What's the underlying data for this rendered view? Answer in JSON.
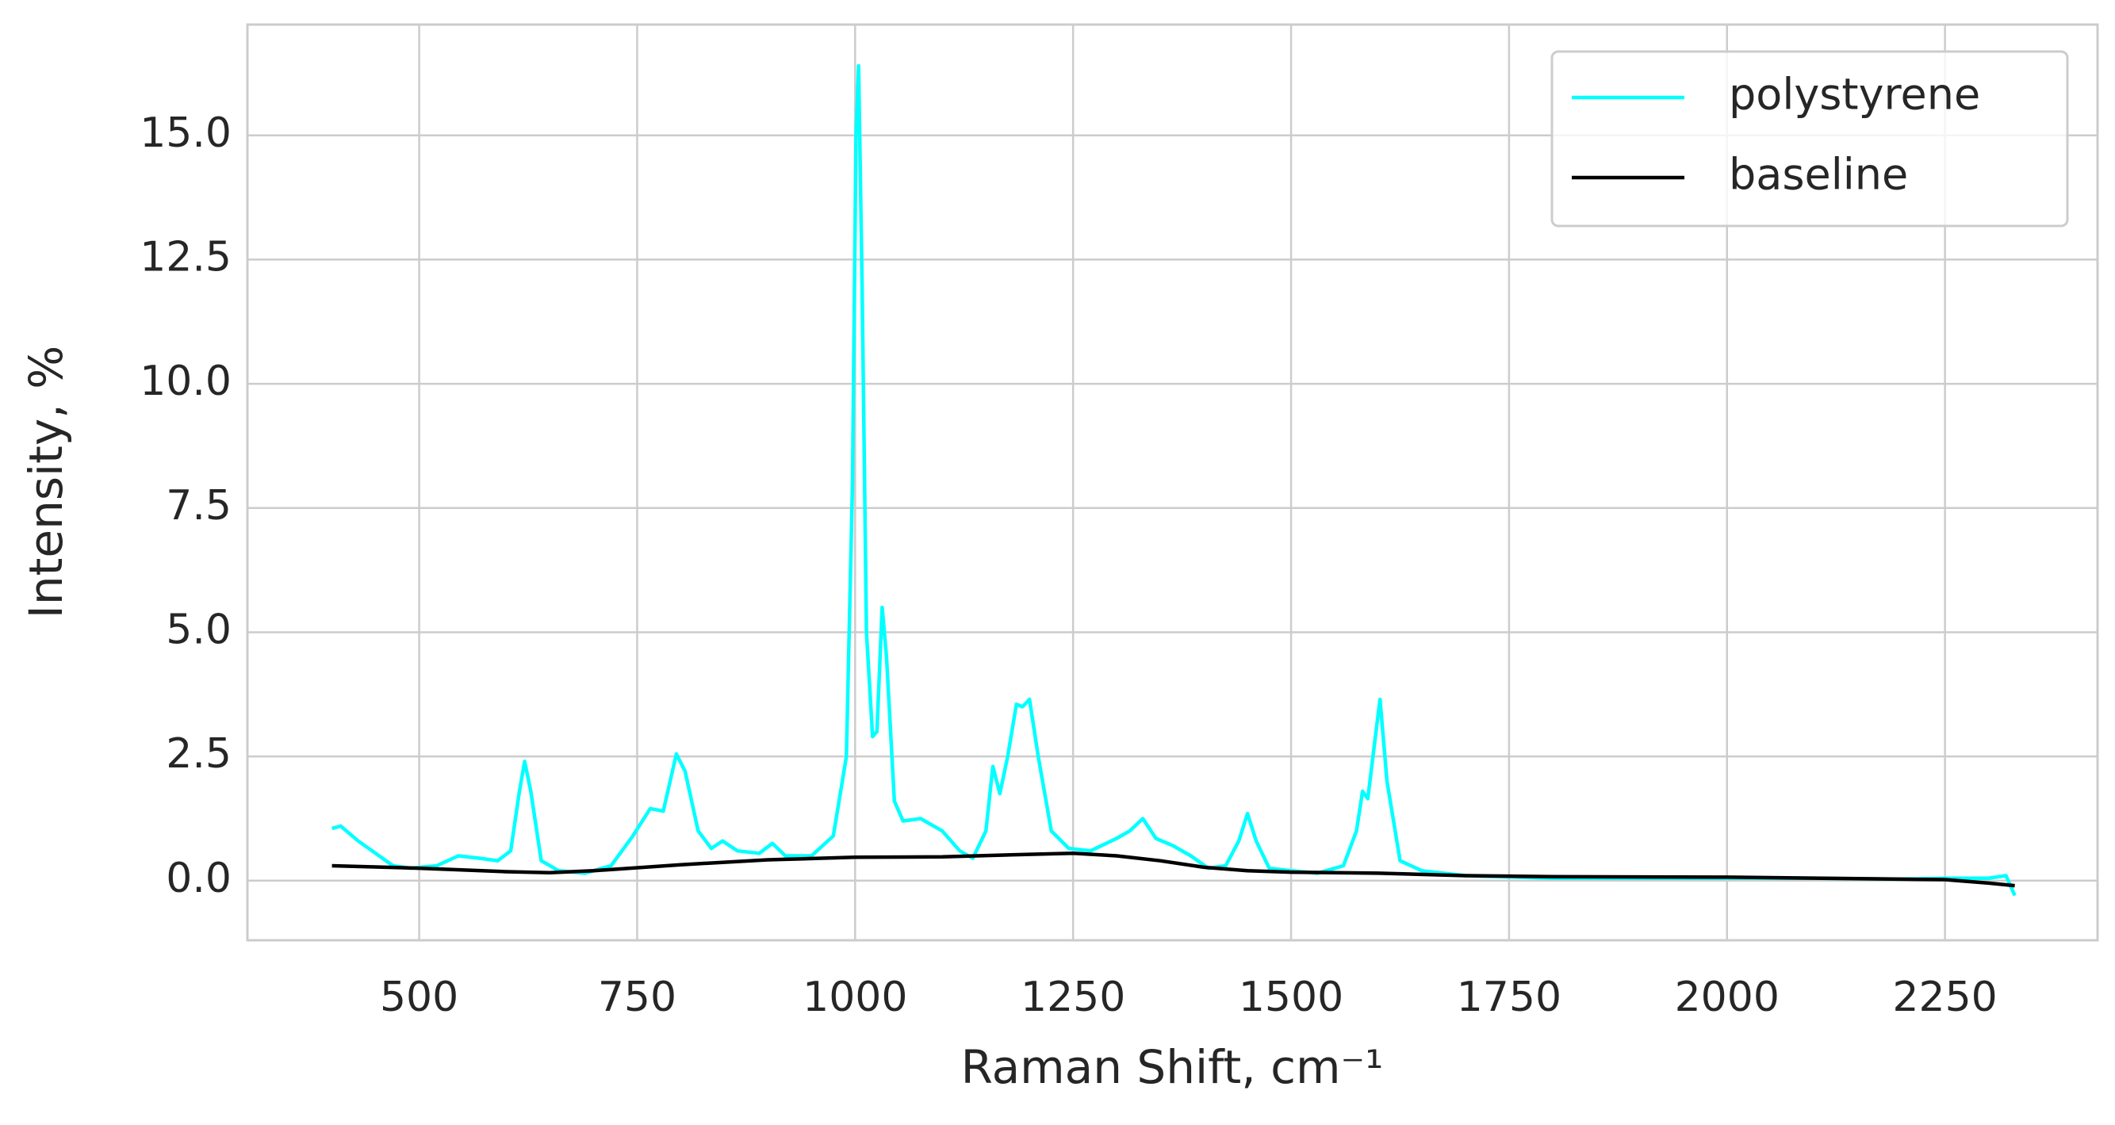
{
  "chart_data": {
    "type": "line",
    "xlabel": "Raman Shift, cm⁻¹",
    "ylabel": "Intensity, %",
    "series": [
      {
        "name": "polystyrene",
        "color": "#00ffff",
        "x": [
          400,
          410,
          430,
          450,
          470,
          490,
          520,
          545,
          570,
          590,
          605,
          615,
          621,
          628,
          640,
          660,
          690,
          720,
          745,
          765,
          780,
          795,
          805,
          820,
          835,
          848,
          865,
          890,
          905,
          920,
          950,
          975,
          990,
          997,
          1001,
          1004,
          1008,
          1013,
          1020,
          1025,
          1031,
          1036,
          1045,
          1055,
          1075,
          1100,
          1120,
          1135,
          1150,
          1158,
          1166,
          1175,
          1185,
          1192,
          1200,
          1210,
          1225,
          1245,
          1270,
          1300,
          1315,
          1330,
          1345,
          1365,
          1385,
          1405,
          1425,
          1440,
          1450,
          1460,
          1475,
          1500,
          1530,
          1560,
          1575,
          1582,
          1588,
          1596,
          1602,
          1610,
          1625,
          1650,
          1700,
          1800,
          1900,
          2000,
          2100,
          2200,
          2250,
          2300,
          2320,
          2330
        ],
        "values": [
          1.05,
          1.1,
          0.8,
          0.55,
          0.3,
          0.25,
          0.3,
          0.5,
          0.45,
          0.4,
          0.6,
          1.8,
          2.4,
          1.8,
          0.4,
          0.2,
          0.15,
          0.3,
          0.9,
          1.45,
          1.4,
          2.55,
          2.2,
          1.0,
          0.65,
          0.8,
          0.6,
          0.55,
          0.75,
          0.5,
          0.5,
          0.9,
          2.5,
          8,
          15,
          16.4,
          12,
          5,
          2.9,
          3.0,
          5.5,
          4.5,
          1.6,
          1.2,
          1.25,
          1.0,
          0.6,
          0.45,
          1.0,
          2.3,
          1.75,
          2.5,
          3.55,
          3.5,
          3.65,
          2.5,
          1.0,
          0.65,
          0.6,
          0.85,
          1.0,
          1.25,
          0.85,
          0.7,
          0.5,
          0.25,
          0.3,
          0.8,
          1.35,
          0.8,
          0.25,
          0.2,
          0.15,
          0.3,
          1.0,
          1.8,
          1.65,
          2.8,
          3.65,
          2.0,
          0.4,
          0.2,
          0.1,
          0.05,
          0.05,
          0.05,
          0.05,
          0.03,
          0.05,
          0.05,
          0.1,
          -0.3
        ]
      },
      {
        "name": "baseline",
        "color": "#000000",
        "x": [
          400,
          500,
          600,
          650,
          700,
          800,
          900,
          1000,
          1100,
          1200,
          1250,
          1300,
          1350,
          1400,
          1450,
          1500,
          1600,
          1700,
          1800,
          2000,
          2200,
          2250,
          2300,
          2330
        ],
        "values": [
          0.3,
          0.25,
          0.18,
          0.16,
          0.2,
          0.32,
          0.42,
          0.47,
          0.48,
          0.53,
          0.55,
          0.5,
          0.4,
          0.27,
          0.2,
          0.17,
          0.15,
          0.1,
          0.08,
          0.07,
          0.03,
          0.02,
          -0.05,
          -0.1
        ]
      }
    ],
    "xlim": [
      303,
      2425
    ],
    "xticks": [
      500,
      750,
      1000,
      1250,
      1500,
      1750,
      2000,
      2250
    ],
    "ylim": [
      -1.2,
      17.23
    ],
    "yticks": [
      {
        "value": 0,
        "label": "0.0"
      },
      2.5,
      {
        "value": 5,
        "label": "5.0"
      },
      7.5,
      {
        "value": 10,
        "label": "10.0"
      },
      12.5,
      {
        "value": 15,
        "label": "15.0"
      }
    ],
    "grid": true,
    "legend": "upper right"
  }
}
